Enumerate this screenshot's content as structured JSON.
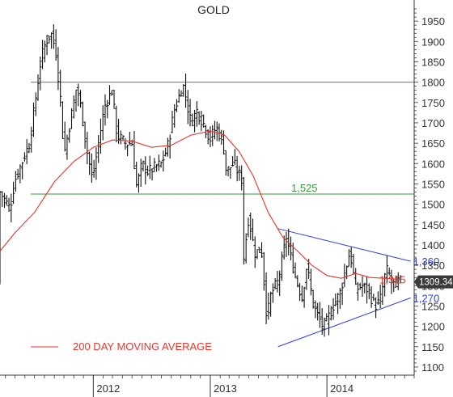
{
  "chart_data": {
    "type": "candlestick",
    "title": "GOLD",
    "xlabel": "",
    "ylabel": "",
    "ylim": [
      1080,
      1990
    ],
    "y_ticks": [
      1100,
      1150,
      1200,
      1250,
      1300,
      1350,
      1400,
      1450,
      1500,
      1550,
      1600,
      1650,
      1700,
      1750,
      1800,
      1850,
      1900,
      1950
    ],
    "x_ticks": [
      {
        "label": "2012",
        "date": "2012-01-01"
      },
      {
        "label": "2013",
        "date": "2013-01-01"
      },
      {
        "label": "2014",
        "date": "2014-01-01"
      }
    ],
    "xlim": [
      "2011-03-15",
      "2014-10-01"
    ],
    "last_price": "1309.34",
    "price_series": {
      "name": "GOLD",
      "color": "#111111",
      "points": [
        [
          "2011-03-15",
          1530
        ],
        [
          "2011-04-15",
          1490
        ],
        [
          "2011-05-01",
          1560
        ],
        [
          "2011-06-15",
          1650
        ],
        [
          "2011-07-01",
          1740
        ],
        [
          "2011-07-20",
          1850
        ],
        [
          "2011-08-05",
          1900
        ],
        [
          "2011-08-22",
          1920
        ],
        [
          "2011-09-05",
          1880
        ],
        [
          "2011-09-20",
          1760
        ],
        [
          "2011-10-01",
          1620
        ],
        [
          "2011-10-15",
          1680
        ],
        [
          "2011-11-10",
          1790
        ],
        [
          "2011-11-25",
          1730
        ],
        [
          "2011-12-10",
          1640
        ],
        [
          "2011-12-29",
          1560
        ],
        [
          "2012-01-15",
          1640
        ],
        [
          "2012-02-05",
          1740
        ],
        [
          "2012-02-28",
          1780
        ],
        [
          "2012-03-15",
          1670
        ],
        [
          "2012-04-10",
          1650
        ],
        [
          "2012-05-01",
          1650
        ],
        [
          "2012-05-16",
          1540
        ],
        [
          "2012-06-01",
          1600
        ],
        [
          "2012-06-20",
          1580
        ],
        [
          "2012-07-10",
          1590
        ],
        [
          "2012-08-01",
          1600
        ],
        [
          "2012-08-20",
          1640
        ],
        [
          "2012-09-10",
          1730
        ],
        [
          "2012-10-01",
          1780
        ],
        [
          "2012-10-10",
          1790
        ],
        [
          "2012-11-01",
          1700
        ],
        [
          "2012-11-20",
          1730
        ],
        [
          "2012-12-10",
          1700
        ],
        [
          "2012-12-31",
          1660
        ],
        [
          "2013-01-20",
          1690
        ],
        [
          "2013-02-10",
          1650
        ],
        [
          "2013-02-20",
          1580
        ],
        [
          "2013-03-15",
          1600
        ],
        [
          "2013-04-10",
          1560
        ],
        [
          "2013-04-16",
          1370
        ],
        [
          "2013-05-01",
          1470
        ],
        [
          "2013-05-20",
          1380
        ],
        [
          "2013-06-10",
          1390
        ],
        [
          "2013-06-27",
          1220
        ],
        [
          "2013-07-10",
          1280
        ],
        [
          "2013-08-01",
          1310
        ],
        [
          "2013-08-27",
          1420
        ],
        [
          "2013-09-10",
          1370
        ],
        [
          "2013-09-25",
          1320
        ],
        [
          "2013-10-15",
          1270
        ],
        [
          "2013-10-30",
          1350
        ],
        [
          "2013-11-20",
          1250
        ],
        [
          "2013-12-19",
          1200
        ],
        [
          "2013-12-31",
          1210
        ],
        [
          "2014-01-20",
          1250
        ],
        [
          "2014-02-10",
          1280
        ],
        [
          "2014-03-14",
          1385
        ],
        [
          "2014-04-01",
          1290
        ],
        [
          "2014-04-20",
          1300
        ],
        [
          "2014-05-10",
          1290
        ],
        [
          "2014-05-30",
          1250
        ],
        [
          "2014-06-15",
          1260
        ],
        [
          "2014-06-30",
          1320
        ],
        [
          "2014-07-10",
          1340
        ],
        [
          "2014-07-25",
          1300
        ],
        [
          "2014-08-10",
          1310
        ],
        [
          "2014-08-20",
          1309.34
        ]
      ]
    },
    "moving_average": {
      "name": "200 DAY MOVING AVERAGE",
      "color": "#e8362c",
      "points": [
        [
          "2011-03-15",
          1385
        ],
        [
          "2011-05-01",
          1430
        ],
        [
          "2011-07-01",
          1480
        ],
        [
          "2011-09-01",
          1555
        ],
        [
          "2011-11-01",
          1605
        ],
        [
          "2012-01-01",
          1640
        ],
        [
          "2012-03-01",
          1658
        ],
        [
          "2012-05-01",
          1655
        ],
        [
          "2012-07-01",
          1640
        ],
        [
          "2012-09-01",
          1645
        ],
        [
          "2012-11-01",
          1670
        ],
        [
          "2013-01-01",
          1680
        ],
        [
          "2013-02-15",
          1670
        ],
        [
          "2013-04-01",
          1630
        ],
        [
          "2013-05-15",
          1570
        ],
        [
          "2013-07-01",
          1480
        ],
        [
          "2013-08-15",
          1420
        ],
        [
          "2013-10-01",
          1385
        ],
        [
          "2013-11-15",
          1350
        ],
        [
          "2014-01-01",
          1325
        ],
        [
          "2014-02-15",
          1318
        ],
        [
          "2014-04-01",
          1330
        ],
        [
          "2014-05-15",
          1320
        ],
        [
          "2014-07-01",
          1318
        ],
        [
          "2014-08-20",
          1315
        ]
      ]
    },
    "horizontal_lines": [
      {
        "value": 1800,
        "color": "#3a9a3a",
        "label": ""
      },
      {
        "value": 1525,
        "color": "#3a9a3a",
        "label": "1,525"
      }
    ],
    "trendlines": [
      {
        "name": "resistance",
        "color": "#2f3fe0",
        "from": [
          "2013-08-01",
          1440
        ],
        "to": [
          "2014-09-20",
          1360
        ],
        "label": "1,360"
      },
      {
        "name": "support",
        "color": "#2f3fe0",
        "from": [
          "2013-08-01",
          1150
        ],
        "to": [
          "2014-09-20",
          1270
        ],
        "label": "1,270"
      }
    ],
    "annotations": [
      {
        "text": "1,315",
        "color": "#e8362c",
        "value": 1315
      }
    ],
    "legend": {
      "placement": "bottom-left",
      "entries": [
        {
          "name": "200 DAY MOVING AVERAGE",
          "color": "#e8362c"
        }
      ]
    },
    "grid": false
  }
}
